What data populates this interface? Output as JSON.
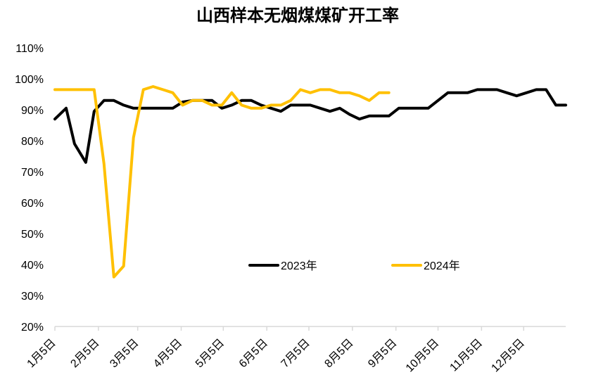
{
  "chart_data": {
    "type": "line",
    "title": "山西样本无烟煤煤矿开工率",
    "xlabel": "",
    "ylabel": "",
    "ylim": [
      20,
      110
    ],
    "y_tick_labels": [
      "20%",
      "30%",
      "40%",
      "50%",
      "60%",
      "70%",
      "80%",
      "90%",
      "100%",
      "110%"
    ],
    "x_range_days": [
      0,
      364
    ],
    "x_tick_days": [
      0,
      31,
      59,
      90,
      120,
      151,
      181,
      212,
      243,
      273,
      304,
      334
    ],
    "x_tick_labels": [
      "1月5日",
      "2月5日",
      "3月5日",
      "4月5日",
      "5月5日",
      "6月5日",
      "7月5日",
      "8月5日",
      "9月5日",
      "10月5日",
      "11月5日",
      "12月5日"
    ],
    "legend_position": "center",
    "series": [
      {
        "name": "2023年",
        "color": "#000000",
        "days": [
          0,
          8,
          14,
          22,
          28,
          35,
          42,
          49,
          56,
          63,
          70,
          77,
          84,
          91,
          98,
          105,
          112,
          119,
          126,
          133,
          140,
          147,
          154,
          161,
          168,
          175,
          182,
          189,
          196,
          203,
          210,
          217,
          224,
          231,
          238,
          245,
          252,
          259,
          266,
          273,
          280,
          287,
          294,
          301,
          308,
          315,
          322,
          329,
          336,
          343,
          350,
          357,
          364
        ],
        "values": [
          87,
          90.5,
          79,
          73,
          89.5,
          93,
          93,
          91.5,
          90.5,
          90.5,
          90.5,
          90.5,
          90.5,
          92.5,
          93,
          93,
          93,
          90.5,
          91.5,
          93,
          93,
          91.5,
          90.5,
          89.5,
          91.5,
          91.5,
          91.5,
          90.5,
          89.5,
          90.5,
          88.5,
          87,
          88,
          88,
          88,
          90.5,
          90.5,
          90.5,
          90.5,
          93,
          95.5,
          95.5,
          95.5,
          96.5,
          96.5,
          96.5,
          95.5,
          94.5,
          95.5,
          96.5,
          96.5,
          91.5,
          91.5
        ]
      },
      {
        "name": "2024年",
        "color": "#FFC000",
        "days": [
          0,
          7,
          14,
          21,
          28,
          35,
          42,
          49,
          56,
          63,
          70,
          77,
          84,
          91,
          98,
          105,
          112,
          119,
          126,
          133,
          140,
          147,
          154,
          161,
          168,
          175,
          182,
          189,
          196,
          203,
          210,
          217,
          224,
          231,
          238
        ],
        "values": [
          96.5,
          96.5,
          96.5,
          96.5,
          96.5,
          72.5,
          36,
          39.5,
          81,
          96.5,
          97.5,
          96.5,
          95.5,
          91.5,
          93,
          93,
          91.5,
          91.5,
          95.5,
          91.5,
          90.5,
          90.5,
          91.5,
          91.5,
          93,
          96.5,
          95.5,
          96.5,
          96.5,
          95.5,
          95.5,
          94.5,
          93,
          95.5,
          95.5
        ]
      }
    ]
  }
}
